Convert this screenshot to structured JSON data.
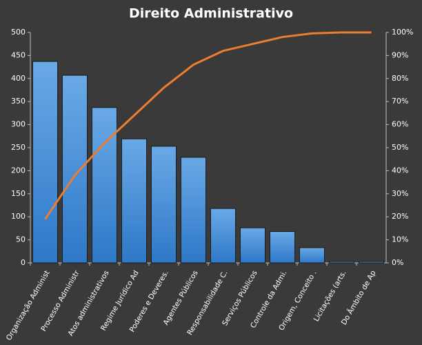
{
  "chart_data": {
    "type": "pareto",
    "title": "Direito  Administrativo",
    "categories": [
      "Organização Administ",
      "Processo Administr",
      "Atos administrativos",
      "Regime Jurídico Ad",
      "Poderes e Deveres.",
      "Agentes Públicos",
      "Responsabilidade C.",
      "Serviços Públicos",
      "Controle da Admi.",
      "Origem, Conceito .",
      "Licitações (arts.",
      "Do Âmbito de Ap"
    ],
    "series": [
      {
        "type": "bar",
        "color": "#4a90d9",
        "values": [
          437,
          407,
          337,
          269,
          253,
          229,
          118,
          76,
          68,
          33,
          3,
          3
        ]
      },
      {
        "type": "line",
        "axis": "y2",
        "color": "#ed7d31",
        "values": [
          19,
          38,
          52,
          64,
          76,
          86,
          92,
          95,
          98,
          99.6,
          100,
          100
        ]
      }
    ],
    "ylim": [
      0,
      500
    ],
    "yticks": [
      0,
      50,
      100,
      150,
      200,
      250,
      300,
      350,
      400,
      450,
      500
    ],
    "y2lim": [
      0,
      100
    ],
    "y2ticks": [
      {
        "value": 0,
        "label": "0%"
      },
      {
        "value": 10,
        "label": "10%"
      },
      {
        "value": 20,
        "label": "20%"
      },
      {
        "value": 30,
        "label": "30%"
      },
      {
        "value": 40,
        "label": "40%"
      },
      {
        "value": 50,
        "label": "50%"
      },
      {
        "value": 60,
        "label": "60%"
      },
      {
        "value": 70,
        "label": "70%"
      },
      {
        "value": 80,
        "label": "80%"
      },
      {
        "value": 90,
        "label": "90%"
      },
      {
        "value": 100,
        "label": "100%"
      }
    ]
  }
}
